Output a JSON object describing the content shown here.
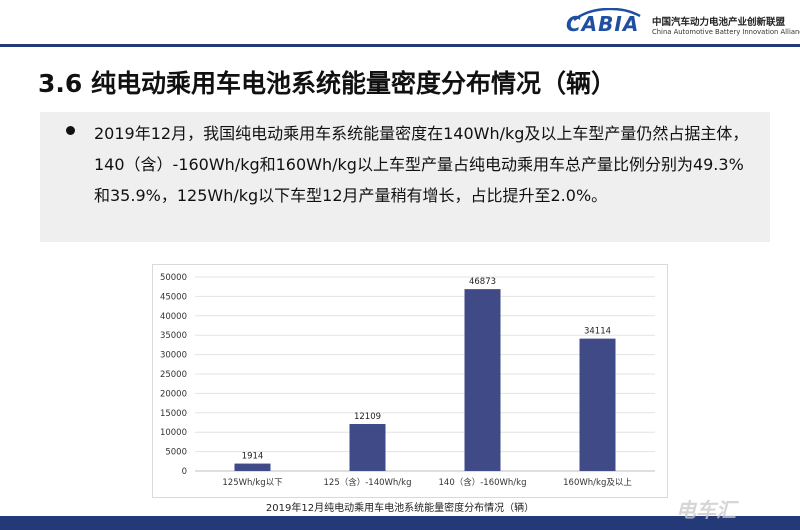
{
  "header": {
    "logo_word": "CABIA",
    "org_cn": "中国汽车动力电池产业创新联盟",
    "org_en": "China Automotive Battery Innovation Alliance"
  },
  "title": "3.6 纯电动乘用车电池系统能量密度分布情况（辆）",
  "bullet_text": "2019年12月，我国纯电动乘用车系统能量密度在140Wh/kg及以上车型产量仍然占据主体，140（含）-160Wh/kg和160Wh/kg以上车型产量占纯电动乘用车总产量比例分别为49.3%和35.9%，125Wh/kg以下车型12月产量稍有增长，占比提升至2.0%。",
  "chart_data": {
    "type": "bar",
    "title": "2019年12月纯电动乘用车电池系统能量密度分布情况（辆）",
    "categories": [
      "125Wh/kg以下",
      "125（含）-140Wh/kg",
      "140（含）-160Wh/kg",
      "160Wh/kg及以上"
    ],
    "values": [
      1914,
      12109,
      46873,
      34114
    ],
    "data_labels": [
      "1914",
      "12109",
      "46873",
      "34114"
    ],
    "ylim": [
      0,
      50000
    ],
    "yticks": [
      "0",
      "5000",
      "10000",
      "15000",
      "20000",
      "25000",
      "30000",
      "35000",
      "40000",
      "45000",
      "50000"
    ],
    "grid": true,
    "bar_color": "#3f4a86"
  },
  "watermark": "电车汇"
}
